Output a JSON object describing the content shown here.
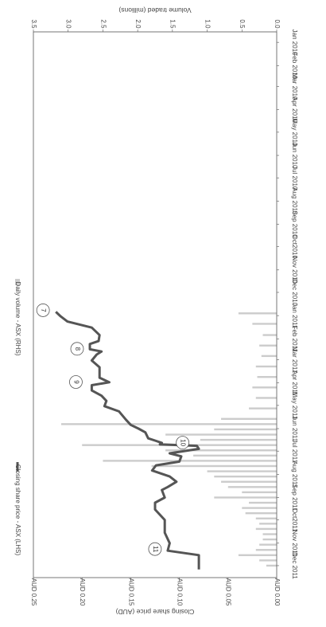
{
  "chart_data": {
    "type": "line",
    "orientation": "rotated-90-clockwise",
    "x_dates": [
      "Jan 2010",
      "Feb 2010",
      "Mar 2010",
      "Apr 2010",
      "May 2010",
      "Jun 2010",
      "Jul 2010",
      "Aug 2010",
      "Sep 2010",
      "Oct 2010",
      "Nov 2010",
      "Dec 2010",
      "Jan 2011",
      "Feb 2011",
      "Mar 2011",
      "Apr 2011",
      "May 2011",
      "Jun 2011",
      "Jul 2011",
      "Aug 2011",
      "Sep 2011",
      "Oct 2011",
      "Nov 2011",
      "Dec 2011"
    ],
    "x_tick_labels": [
      "Jan 2010",
      "Feb 2010",
      "Mar 2010",
      "Apr 2010",
      "May 2010",
      "Jun 2010",
      "Jul 2010",
      "Aug 2010",
      "Sep 2010",
      "Oct2010",
      "Nov 2010",
      "Dec 2010",
      "Jan 2011",
      "Feb 2011",
      "Mar 2011",
      "Apr 2011",
      "May 2011",
      "Jun 2011",
      "Jul 2011",
      "Aug 2011",
      "Sep 2011",
      "Oct2011",
      "Nov 2011",
      "Dec 2011"
    ],
    "xlim": [
      "Jan 2010",
      "Dec 2011"
    ],
    "left_axis": {
      "label": "Closing share price (AUD)",
      "ticks": [
        "AUD 0.00",
        "AUD 0.05",
        "AUD 0.10",
        "AUD 0.15",
        "AUD 0.20",
        "AUD 0.25"
      ],
      "ylim": [
        0,
        0.25
      ]
    },
    "right_axis": {
      "label": "Volume traded (millions)",
      "ticks": [
        "0.0",
        "0.5",
        "1.0",
        "1.5",
        "2.0",
        "2.5",
        "3.0",
        "3.5"
      ],
      "ylim": [
        0,
        3.5
      ]
    },
    "series": [
      {
        "name": "Closing share price - ASX (LHS)",
        "axis": "left",
        "kind": "line",
        "color": "#555555",
        "points": [
          [
            "2011-01-10",
            0.227
          ],
          [
            "2011-01-16",
            0.222
          ],
          [
            "2011-01-23",
            0.215
          ],
          [
            "2011-01-31",
            0.19
          ],
          [
            "2011-02-10",
            0.182
          ],
          [
            "2011-02-18",
            0.183
          ],
          [
            "2011-02-22",
            0.192
          ],
          [
            "2011-03-01",
            0.192
          ],
          [
            "2011-03-04",
            0.18
          ],
          [
            "2011-03-08",
            0.185
          ],
          [
            "2011-03-16",
            0.19
          ],
          [
            "2011-03-25",
            0.182
          ],
          [
            "2011-04-08",
            0.182
          ],
          [
            "2011-04-14",
            0.172
          ],
          [
            "2011-04-18",
            0.19
          ],
          [
            "2011-04-25",
            0.19
          ],
          [
            "2011-05-02",
            0.18
          ],
          [
            "2011-05-09",
            0.175
          ],
          [
            "2011-05-16",
            0.177
          ],
          [
            "2011-05-23",
            0.162
          ],
          [
            "2011-06-03",
            0.155
          ],
          [
            "2011-06-10",
            0.15
          ],
          [
            "2011-06-15",
            0.142
          ],
          [
            "2011-06-20",
            0.135
          ],
          [
            "2011-06-28",
            0.132
          ],
          [
            "2011-07-01",
            0.125
          ],
          [
            "2011-07-04",
            0.118
          ],
          [
            "2011-07-06",
            0.12
          ],
          [
            "2011-07-08",
            0.082
          ],
          [
            "2011-07-12",
            0.08
          ],
          [
            "2011-07-18",
            0.11
          ],
          [
            "2011-07-22",
            0.098
          ],
          [
            "2011-07-29",
            0.1
          ],
          [
            "2011-08-03",
            0.124
          ],
          [
            "2011-08-10",
            0.128
          ],
          [
            "2011-08-18",
            0.11
          ],
          [
            "2011-08-25",
            0.103
          ],
          [
            "2011-09-01",
            0.112
          ],
          [
            "2011-09-05",
            0.118
          ],
          [
            "2011-09-15",
            0.115
          ],
          [
            "2011-09-22",
            0.125
          ],
          [
            "2011-10-01",
            0.125
          ],
          [
            "2011-10-15",
            0.115
          ],
          [
            "2011-11-01",
            0.115
          ],
          [
            "2011-11-15",
            0.11
          ],
          [
            "2011-11-25",
            0.112
          ],
          [
            "2011-12-01",
            0.08
          ],
          [
            "2011-12-20",
            0.08
          ]
        ]
      },
      {
        "name": "Daily volume - ASX (RHS)",
        "axis": "right",
        "kind": "bar",
        "color": "#cccccc",
        "points": [
          [
            "2011-01-12",
            0.55
          ],
          [
            "2011-01-26",
            0.35
          ],
          [
            "2011-02-10",
            0.2
          ],
          [
            "2011-02-24",
            0.25
          ],
          [
            "2011-03-10",
            0.22
          ],
          [
            "2011-03-24",
            0.3
          ],
          [
            "2011-04-07",
            0.28
          ],
          [
            "2011-04-21",
            0.35
          ],
          [
            "2011-05-05",
            0.3
          ],
          [
            "2011-05-19",
            0.4
          ],
          [
            "2011-06-02",
            0.8
          ],
          [
            "2011-06-09",
            3.1
          ],
          [
            "2011-06-16",
            0.9
          ],
          [
            "2011-06-23",
            1.6
          ],
          [
            "2011-06-30",
            1.1
          ],
          [
            "2011-07-07",
            2.8
          ],
          [
            "2011-07-14",
            1.6
          ],
          [
            "2011-07-21",
            1.2
          ],
          [
            "2011-07-28",
            2.5
          ],
          [
            "2011-08-04",
            1.8
          ],
          [
            "2011-08-11",
            1.0
          ],
          [
            "2011-08-18",
            0.9
          ],
          [
            "2011-08-25",
            0.8
          ],
          [
            "2011-09-01",
            0.7
          ],
          [
            "2011-09-08",
            0.5
          ],
          [
            "2011-09-15",
            0.9
          ],
          [
            "2011-09-22",
            0.4
          ],
          [
            "2011-09-29",
            0.5
          ],
          [
            "2011-10-06",
            0.45
          ],
          [
            "2011-10-13",
            0.3
          ],
          [
            "2011-10-20",
            0.25
          ],
          [
            "2011-10-27",
            0.3
          ],
          [
            "2011-11-03",
            0.2
          ],
          [
            "2011-11-10",
            0.2
          ],
          [
            "2011-11-17",
            0.25
          ],
          [
            "2011-11-24",
            0.3
          ],
          [
            "2011-12-01",
            0.55
          ],
          [
            "2011-12-08",
            0.25
          ],
          [
            "2011-12-15",
            0.15
          ]
        ]
      }
    ],
    "annotations": [
      {
        "label": "7",
        "date": "2011-01-10",
        "value": 0.227
      },
      {
        "label": "8",
        "date": "2011-02-22",
        "value": 0.192
      },
      {
        "label": "9",
        "date": "2011-04-18",
        "value": 0.19
      },
      {
        "label": "10",
        "date": "2011-07-08",
        "value": 0.082
      },
      {
        "label": "11",
        "date": "2011-11-25",
        "value": 0.112
      }
    ],
    "legend": {
      "placement": "bottom"
    },
    "grid": false
  }
}
